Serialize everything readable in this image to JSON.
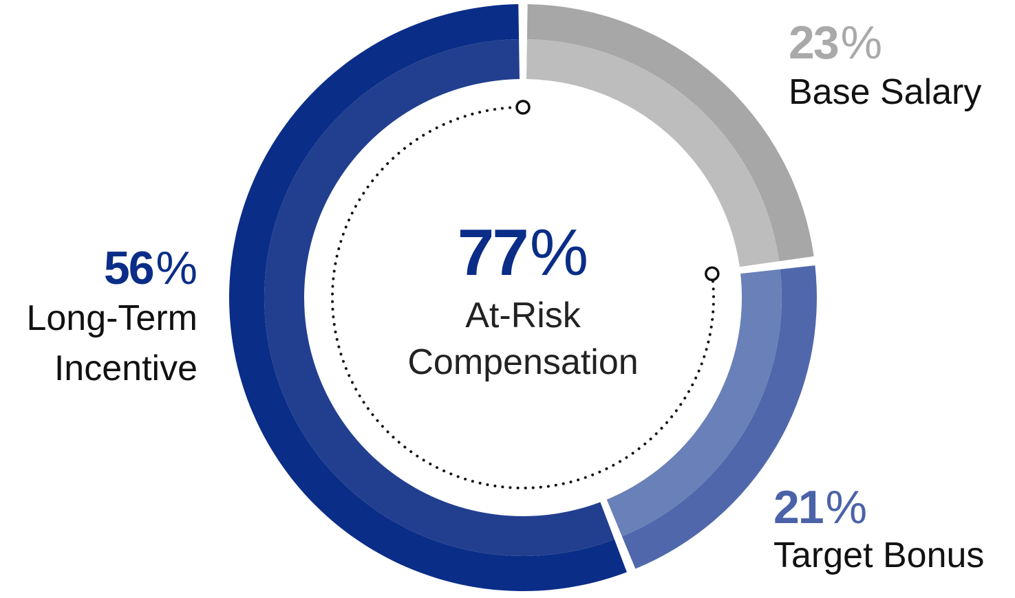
{
  "chart_data": {
    "type": "pie",
    "variant": "donut",
    "unit": "%",
    "series": [
      {
        "name": "Base Salary",
        "value": 23,
        "color_outer": "#a7a7a7",
        "color_inner": "#bdbdbd",
        "label_color": "#a9a9a9"
      },
      {
        "name": "Target Bonus",
        "value": 21,
        "color_outer": "#5068ab",
        "color_inner": "#6a80b8",
        "label_color": "#4a62a8"
      },
      {
        "name": "Long-Term Incentive",
        "name_lines": [
          "Long-Term",
          "Incentive"
        ],
        "value": 56,
        "color_outer": "#0a2d87",
        "color_inner": "#223f8f",
        "label_color": "#0a2d87"
      }
    ],
    "center": {
      "value": 77,
      "text": "At-Risk\nCompensation",
      "color": "#0a2d87"
    },
    "annotation": "dotted arc spanning the at-risk portion (Target Bonus + Long-Term Incentive)"
  }
}
